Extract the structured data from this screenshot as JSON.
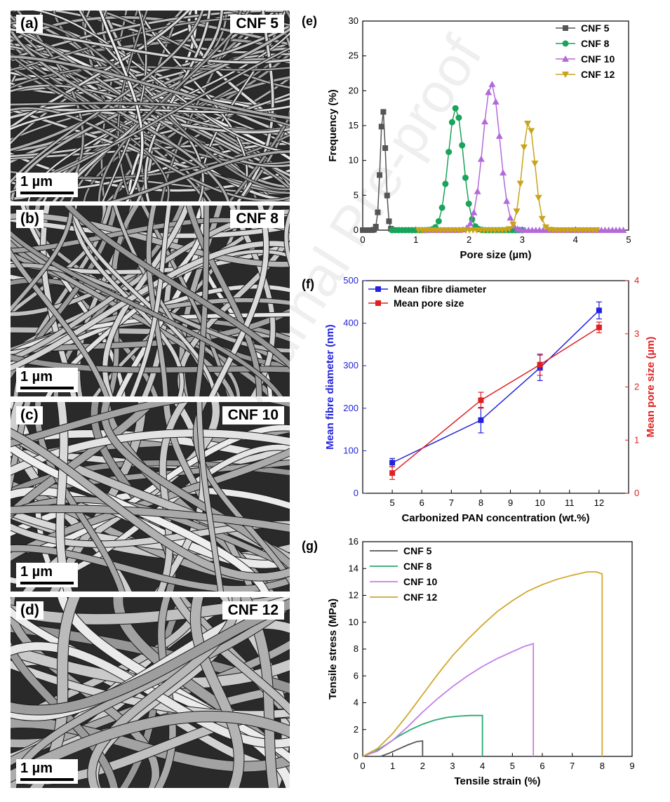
{
  "watermark": "Journal Pre-proof",
  "sem_panels": [
    {
      "letter": "(a)",
      "name": "CNF 5",
      "scale_label": "1 µm",
      "fiber_width": 3,
      "fiber_count": 90
    },
    {
      "letter": "(b)",
      "name": "CNF 8",
      "scale_label": "1 µm",
      "fiber_width": 6,
      "fiber_count": 55
    },
    {
      "letter": "(c)",
      "name": "CNF 10",
      "scale_label": "1 µm",
      "fiber_width": 9,
      "fiber_count": 40
    },
    {
      "letter": "(d)",
      "name": "CNF 12",
      "scale_label": "1 µm",
      "fiber_width": 12,
      "fiber_count": 32
    }
  ],
  "chart_data": [
    {
      "panel": "(e)",
      "type": "line",
      "xlabel": "Pore size (µm)",
      "ylabel": "Frequency (%)",
      "xlim": [
        0,
        5
      ],
      "ylim": [
        0,
        30
      ],
      "xticks": [
        0,
        1,
        2,
        3,
        4,
        5
      ],
      "yticks": [
        0,
        5,
        10,
        15,
        20,
        25,
        30
      ],
      "legend": "top-right",
      "series": [
        {
          "name": "CNF 5",
          "color": "#555555",
          "marker": "square",
          "peak_x": 0.38,
          "peak_y": 17.2,
          "sigma": 0.05,
          "x_range": [
            0,
            0.6
          ],
          "points": 18
        },
        {
          "name": "CNF 8",
          "color": "#1aa35a",
          "marker": "circle",
          "peak_x": 1.75,
          "peak_y": 17.5,
          "sigma": 0.14,
          "x_range": [
            0.55,
            3.0
          ],
          "points": 40
        },
        {
          "name": "CNF 10",
          "color": "#b36ad9",
          "marker": "triangle-up",
          "peak_x": 2.42,
          "peak_y": 21.0,
          "sigma": 0.16,
          "x_range": [
            1.2,
            4.9
          ],
          "points": 55
        },
        {
          "name": "CNF 12",
          "color": "#c9a31a",
          "marker": "triangle-down",
          "peak_x": 3.12,
          "peak_y": 15.5,
          "sigma": 0.12,
          "x_range": [
            1.05,
            4.4
          ],
          "points": 50
        }
      ]
    },
    {
      "panel": "(f)",
      "type": "line",
      "xlabel": "Carbonized PAN concentration (wt.%)",
      "ylabel": "Mean fibre diameter (nm)",
      "ylabel_right": "Mean pore size (µm)",
      "xlim": [
        4,
        13
      ],
      "ylim": [
        0,
        500
      ],
      "ylim_right": [
        0,
        4
      ],
      "xticks": [
        5,
        6,
        7,
        8,
        9,
        10,
        11,
        12
      ],
      "yticks": [
        0,
        100,
        200,
        300,
        400,
        500
      ],
      "yticks_right": [
        0,
        1,
        2,
        3,
        4
      ],
      "legend": "top-left",
      "series": [
        {
          "name": "Mean fibre diameter",
          "color": "#2222dd",
          "axis": "left",
          "x": [
            5,
            8,
            10,
            12
          ],
          "y": [
            72,
            172,
            295,
            430
          ],
          "err": [
            10,
            30,
            30,
            20
          ]
        },
        {
          "name": "Mean pore size",
          "color": "#e02020",
          "axis": "right",
          "x": [
            5,
            8,
            10,
            12
          ],
          "y": [
            0.38,
            1.75,
            2.42,
            3.12
          ],
          "err": [
            0.12,
            0.15,
            0.2,
            0.1
          ]
        }
      ]
    },
    {
      "panel": "(g)",
      "type": "line",
      "xlabel": "Tensile strain (%)",
      "ylabel": "Tensile stress (MPa)",
      "xlim": [
        0,
        9
      ],
      "ylim": [
        0,
        16
      ],
      "xticks": [
        0,
        1,
        2,
        3,
        4,
        5,
        6,
        7,
        8,
        9
      ],
      "yticks": [
        0,
        2,
        4,
        6,
        8,
        10,
        12,
        14,
        16
      ],
      "legend": "top-left",
      "series": [
        {
          "name": "CNF 5",
          "color": "#555555",
          "x": [
            0.6,
            0.9,
            1.2,
            1.5,
            1.8,
            2.0,
            2.0
          ],
          "y": [
            0,
            0.25,
            0.55,
            0.85,
            1.1,
            1.15,
            0
          ]
        },
        {
          "name": "CNF 8",
          "color": "#2aa870",
          "x": [
            0,
            0.4,
            0.8,
            1.2,
            1.6,
            2.0,
            2.4,
            2.8,
            3.2,
            3.6,
            4.0,
            4.0
          ],
          "y": [
            0,
            0.35,
            0.9,
            1.5,
            2.0,
            2.4,
            2.7,
            2.9,
            3.0,
            3.05,
            3.05,
            0
          ]
        },
        {
          "name": "CNF 10",
          "color": "#c07ee8",
          "x": [
            0,
            0.5,
            1.0,
            1.5,
            2.0,
            2.5,
            3.0,
            3.5,
            4.0,
            4.5,
            5.0,
            5.4,
            5.7,
            5.7
          ],
          "y": [
            0,
            0.4,
            1.2,
            2.2,
            3.3,
            4.3,
            5.2,
            6.0,
            6.7,
            7.3,
            7.8,
            8.2,
            8.4,
            0
          ]
        },
        {
          "name": "CNF 12",
          "color": "#d1a72a",
          "x": [
            0,
            0.5,
            1.0,
            1.5,
            2.0,
            2.5,
            3.0,
            3.5,
            4.0,
            4.5,
            5.0,
            5.5,
            6.0,
            6.5,
            7.0,
            7.5,
            7.8,
            8.0,
            8.0
          ],
          "y": [
            0,
            0.6,
            1.7,
            3.1,
            4.6,
            6.1,
            7.5,
            8.7,
            9.8,
            10.8,
            11.6,
            12.3,
            12.8,
            13.2,
            13.5,
            13.75,
            13.75,
            13.6,
            0
          ]
        }
      ]
    }
  ]
}
